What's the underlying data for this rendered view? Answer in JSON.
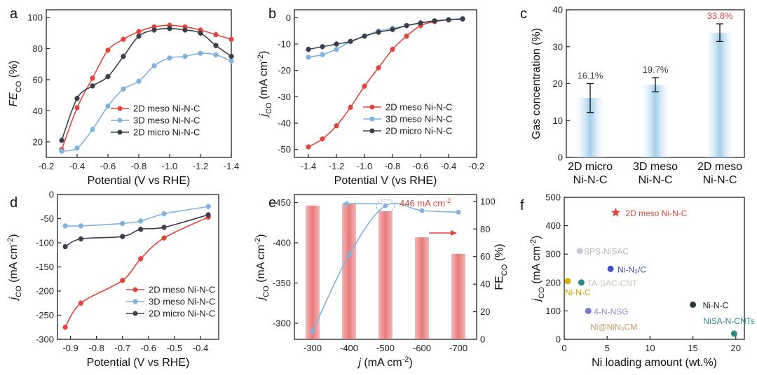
{
  "colors": {
    "red": "#e0453c",
    "blue": "#7fb2dd",
    "dark": "#3a3d4a",
    "bar_red": "#e87a7a",
    "bar_blue": "#9ccbe7",
    "frame": "#222222"
  },
  "chart_data": [
    {
      "panel": "a",
      "type": "line",
      "xlabel": "Potential (V vs RHE)",
      "ylabel": "FE",
      "ylabel_sub": "CO",
      "ylabel_unit": " (%)",
      "xlim": [
        -0.2,
        -1.4
      ],
      "ylim": [
        10,
        105
      ],
      "xticks": [
        -0.2,
        -0.4,
        -0.6,
        -0.8,
        -1.0,
        -1.2,
        -1.4
      ],
      "xtick_labels": [
        "-0.2",
        "-0.4",
        "-0.6",
        "-0.8",
        "-1.0",
        "-1.2",
        "-1.4"
      ],
      "yticks": [
        20,
        40,
        60,
        80,
        100
      ],
      "ytick_labels": [
        "20",
        "40",
        "60",
        "80",
        "100"
      ],
      "legend": [
        "2D meso Ni-N-C",
        "3D meso Ni-N-C",
        "2D micro Ni-N-C"
      ],
      "series": [
        {
          "name": "2D meso Ni-N-C",
          "color": "red",
          "x": [
            -0.3,
            -0.4,
            -0.5,
            -0.6,
            -0.7,
            -0.8,
            -0.9,
            -1.0,
            -1.1,
            -1.2,
            -1.3,
            -1.4
          ],
          "y": [
            15,
            42,
            61,
            79,
            86,
            91,
            94,
            95,
            94,
            92,
            89,
            86
          ]
        },
        {
          "name": "3D meso Ni-N-C",
          "color": "blue",
          "x": [
            -0.3,
            -0.4,
            -0.5,
            -0.6,
            -0.7,
            -0.8,
            -0.9,
            -1.0,
            -1.1,
            -1.2,
            -1.3,
            -1.4
          ],
          "y": [
            14,
            16,
            28,
            43,
            54,
            59,
            69,
            74,
            75,
            77,
            76,
            72
          ]
        },
        {
          "name": "2D micro Ni-N-C",
          "color": "dark",
          "x": [
            -0.3,
            -0.4,
            -0.5,
            -0.6,
            -0.7,
            -0.8,
            -0.9,
            -1.0,
            -1.1,
            -1.2,
            -1.3,
            -1.4
          ],
          "y": [
            21,
            48,
            56,
            62,
            75,
            88,
            92,
            93,
            92,
            90,
            82,
            75
          ]
        }
      ]
    },
    {
      "panel": "b",
      "type": "line",
      "xlabel": "Potential V (vs RHE)",
      "ylabel": "j",
      "ylabel_sub": "CO",
      "ylabel_unit": " (mA cm",
      "ylabel_sup": "-2",
      "ylabel_close": ")",
      "xlim": [
        -1.5,
        -0.2
      ],
      "ylim": [
        -53,
        3
      ],
      "xticks": [
        -1.4,
        -1.2,
        -1.0,
        -0.8,
        -0.6,
        -0.4,
        -0.2
      ],
      "xtick_labels": [
        "-1.4",
        "-1.2",
        "-1.0",
        "-0.8",
        "-0.6",
        "-0.4",
        "-0.2"
      ],
      "yticks": [
        0,
        -10,
        -20,
        -30,
        -40,
        -50
      ],
      "ytick_labels": [
        "0",
        "-10",
        "-20",
        "-30",
        "-40",
        "-50"
      ],
      "legend": [
        "2D meso Ni-N-C",
        "3D meso Ni-N-C",
        "2D micro Ni-N-C"
      ],
      "series": [
        {
          "name": "2D meso Ni-N-C",
          "color": "red",
          "x": [
            -1.4,
            -1.3,
            -1.2,
            -1.1,
            -1.0,
            -0.9,
            -0.8,
            -0.7,
            -0.6,
            -0.5,
            -0.4,
            -0.3
          ],
          "y": [
            -49,
            -46,
            -41,
            -34,
            -26,
            -19,
            -12,
            -7,
            -3,
            -1.5,
            -0.8,
            -0.3
          ]
        },
        {
          "name": "3D meso Ni-N-C",
          "color": "blue",
          "x": [
            -1.4,
            -1.3,
            -1.2,
            -1.1,
            -1.0,
            -0.9,
            -0.8,
            -0.7,
            -0.6,
            -0.5,
            -0.4,
            -0.3
          ],
          "y": [
            -15,
            -14,
            -12,
            -9,
            -7,
            -5,
            -4,
            -3,
            -2,
            -1.2,
            -0.7,
            -0.3
          ]
        },
        {
          "name": "2D micro Ni-N-C",
          "color": "dark",
          "x": [
            -1.4,
            -1.3,
            -1.2,
            -1.1,
            -1.0,
            -0.9,
            -0.8,
            -0.7,
            -0.6,
            -0.5,
            -0.4,
            -0.3
          ],
          "y": [
            -12,
            -11,
            -10,
            -9,
            -7,
            -5.5,
            -4.5,
            -3,
            -2,
            -1.2,
            -0.8,
            -0.5
          ]
        }
      ]
    },
    {
      "panel": "c",
      "type": "bar",
      "ylabel": "Gas concentration (%)",
      "ylim": [
        0,
        40
      ],
      "yticks": [
        0,
        10,
        20,
        30,
        40
      ],
      "ytick_labels": [
        "0",
        "10",
        "20",
        "30",
        "40"
      ],
      "categories": [
        [
          "2D micro",
          "Ni-N-C"
        ],
        [
          "3D meso",
          "Ni-N-C"
        ],
        [
          "2D meso",
          "Ni-N-C"
        ]
      ],
      "values": [
        16.1,
        19.7,
        33.8
      ],
      "errors": [
        3.9,
        1.9,
        2.4
      ],
      "value_labels": [
        "16.1%",
        "19.7%",
        "33.8%"
      ],
      "label_colors": [
        "dark",
        "dark",
        "red"
      ]
    },
    {
      "panel": "d",
      "type": "line",
      "xlabel": "Potential (V vs RHE)",
      "ylabel": "j",
      "ylabel_sub": "CO",
      "ylabel_unit": " (mA cm",
      "ylabel_sup": "-2",
      "ylabel_close": ")",
      "xlim": [
        -0.95,
        -0.33
      ],
      "ylim": [
        -300,
        0
      ],
      "xticks": [
        -0.9,
        -0.8,
        -0.7,
        -0.6,
        -0.5,
        -0.4
      ],
      "xtick_labels": [
        "-0.9",
        "-0.8",
        "-0.7",
        "-0.6",
        "-0.5",
        "-0.4"
      ],
      "yticks": [
        0,
        -50,
        -100,
        -150,
        -200,
        -250,
        -300
      ],
      "ytick_labels": [
        "0",
        "-50",
        "-100",
        "-150",
        "-200",
        "-250",
        "-300"
      ],
      "legend": [
        "2D meso Ni-N-C",
        "3D meso Ni-N-C",
        "2D micro Ni-N-C"
      ],
      "series": [
        {
          "name": "2D meso Ni-N-C",
          "color": "red",
          "x": [
            -0.92,
            -0.86,
            -0.7,
            -0.63,
            -0.54,
            -0.37
          ],
          "y": [
            -275,
            -225,
            -178,
            -133,
            -90,
            -47
          ]
        },
        {
          "name": "3D meso Ni-N-C",
          "color": "blue",
          "x": [
            -0.92,
            -0.86,
            -0.7,
            -0.63,
            -0.54,
            -0.37
          ],
          "y": [
            -65,
            -65,
            -60,
            -55,
            -40,
            -25
          ]
        },
        {
          "name": "2D micro Ni-N-C",
          "color": "dark",
          "x": [
            -0.92,
            -0.86,
            -0.7,
            -0.63,
            -0.54,
            -0.37
          ],
          "y": [
            -108,
            -92,
            -87,
            -72,
            -68,
            -42
          ]
        }
      ]
    },
    {
      "panel": "e",
      "type": "bar",
      "xlabel": "j",
      "xlabel_unit": " (mA cm",
      "xlabel_sup": "-2",
      "xlabel_close": ")",
      "ylabel": "j",
      "ylabel_sub": "CO",
      "ylabel_unit": " (mA cm",
      "ylabel_sup": "-2",
      "ylabel_close": ")",
      "y2label": "FE",
      "y2label_sub": "CO",
      "y2label_unit": " (%)",
      "categories": [
        "-300",
        "-400",
        "-500",
        "-600",
        "-700"
      ],
      "fe_values": [
        97,
        98,
        93,
        74,
        62
      ],
      "ylim": [
        -280,
        -460
      ],
      "yticks": [
        -300,
        -350,
        -400,
        -450
      ],
      "ytick_labels": [
        "-300",
        "-350",
        "-400",
        "-450"
      ],
      "y2lim": [
        0,
        105
      ],
      "y2ticks": [
        0,
        20,
        40,
        60,
        80,
        100
      ],
      "y2tick_labels": [
        "0",
        "20",
        "40",
        "60",
        "80",
        "100"
      ],
      "jco_x": [
        0,
        1,
        2,
        3,
        4
      ],
      "jco_values": [
        -290,
        -385,
        -446,
        -440,
        -438
      ],
      "annotation": "446 mA cm"
    },
    {
      "panel": "f",
      "type": "scatter",
      "xlabel": "Ni loading amount (wt.%)",
      "ylabel": "j",
      "ylabel_sub": "CO",
      "ylabel_unit": " (mA cm",
      "ylabel_sup": "-2",
      "ylabel_close": ")",
      "xlim": [
        0,
        21
      ],
      "ylim": [
        0,
        500
      ],
      "xticks": [
        0,
        5,
        10,
        15,
        20
      ],
      "xtick_labels": [
        "0",
        "5",
        "10",
        "15",
        "20"
      ],
      "yticks": [
        0,
        100,
        200,
        300,
        400,
        500
      ],
      "ytick_labels": [
        "0",
        "100",
        "200",
        "300",
        "400",
        "500"
      ],
      "points": [
        {
          "label": "2D meso Ni-N-C",
          "x": 6.0,
          "y": 446,
          "color": "#e0453c",
          "shape": "star",
          "label_color": "#e0453c"
        },
        {
          "label": "SPS-NiSAC",
          "x": 1.8,
          "y": 311,
          "color": "#c8c8d0",
          "shape": "circle",
          "label_color": "#b9b9c4"
        },
        {
          "label": "Ni-N₃/C",
          "x": 5.4,
          "y": 248,
          "color": "#3f4fc0",
          "shape": "circle",
          "label_color": "#3f4fc0"
        },
        {
          "label": "TA-SAC-CNT",
          "x": 2.0,
          "y": 200,
          "color": "#2a8a86",
          "shape": "circle",
          "label_color": "#c9c9b0"
        },
        {
          "label": "Ni-N-C",
          "x": 0.4,
          "y": 205,
          "color": "#d4b400",
          "shape": "circle",
          "label_color": "#c8a400"
        },
        {
          "label": "4-N-NSG",
          "x": 2.8,
          "y": 100,
          "color": "#7d78c8",
          "shape": "circle",
          "label_color": "#8f8ad2"
        },
        {
          "label": "Ni@NiN₃CM",
          "x": 3.2,
          "y": 58,
          "color": "#d69b44",
          "shape": "none",
          "label_color": "#c79a5a"
        },
        {
          "label": "Ni-N-C",
          "x": 15.0,
          "y": 122,
          "color": "#2e3b3a",
          "shape": "circle",
          "label_color": "#222222"
        },
        {
          "label": "NiSA-N-CNTs",
          "x": 19.8,
          "y": 20,
          "color": "#2a8a86",
          "shape": "circle",
          "label_color": "#2a8a86"
        }
      ]
    }
  ],
  "panel_letters": [
    "a",
    "b",
    "c",
    "d",
    "e",
    "f"
  ]
}
